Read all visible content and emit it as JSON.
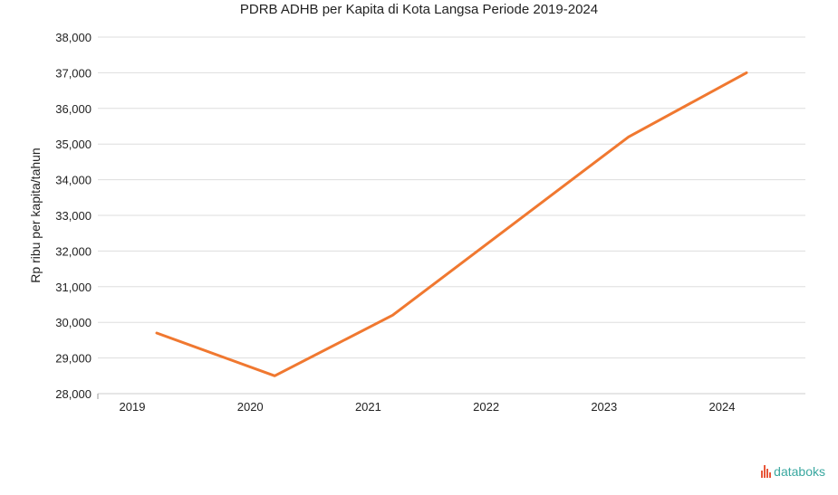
{
  "chart_data": {
    "type": "line",
    "title": "PDRB ADHB per Kapita di Kota Langsa Periode 2019-2024",
    "xlabel": "",
    "ylabel": "Rp ribu per kapita/tahun",
    "categories": [
      "2019",
      "2020",
      "2021",
      "2022",
      "2023",
      "2024"
    ],
    "series": [
      {
        "values": [
          29700,
          28500,
          30200,
          32700,
          35200,
          37000
        ]
      }
    ],
    "ylim": [
      28000,
      38000
    ],
    "yticks": [
      "28,000",
      "29,000",
      "30,000",
      "31,000",
      "32,000",
      "33,000",
      "34,000",
      "35,000",
      "36,000",
      "37,000",
      "38,000"
    ],
    "grid": true,
    "line_color": "#f07830",
    "grid_color": "#dddddd"
  },
  "brand": {
    "name": "databoks",
    "color": "#3aa8a0",
    "icon": "databoks-logo-icon"
  }
}
